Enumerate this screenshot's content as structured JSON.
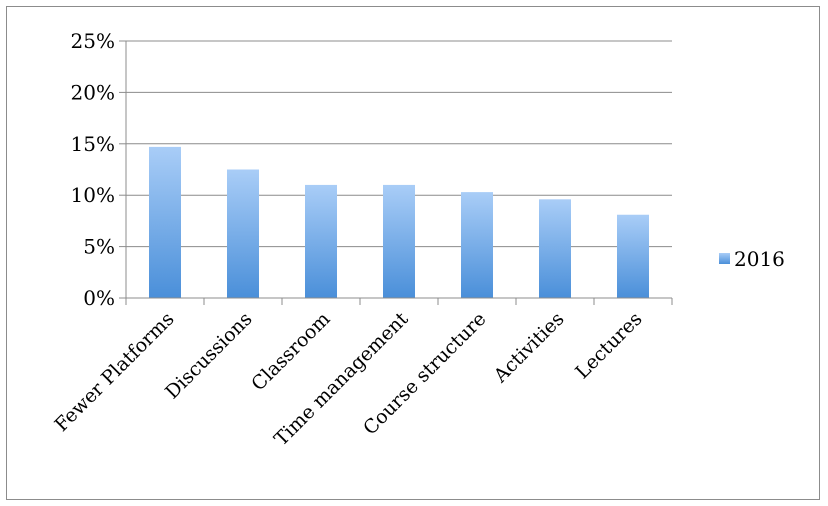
{
  "chart_data": {
    "type": "bar",
    "title": "",
    "xlabel": "",
    "ylabel": "",
    "categories": [
      "Fewer Platforms",
      "Discussions",
      "Classroom",
      "Time management",
      "Course structure",
      "Activities",
      "Lectures"
    ],
    "series": [
      {
        "name": "2016",
        "values": [
          14.7,
          12.5,
          11.0,
          11.0,
          10.3,
          9.6,
          8.1
        ]
      }
    ],
    "ylim": [
      0,
      25
    ],
    "yticks": [
      0,
      5,
      10,
      15,
      20,
      25
    ],
    "ytick_labels": [
      "0%",
      "5%",
      "10%",
      "15%",
      "20%",
      "25%"
    ],
    "grid": true,
    "legend_position": "right",
    "colors": {
      "bar_top": "#a9cdf7",
      "bar_bottom": "#4a8fd9",
      "gridline": "#8c8c8c",
      "axis": "#8c8c8c"
    }
  }
}
